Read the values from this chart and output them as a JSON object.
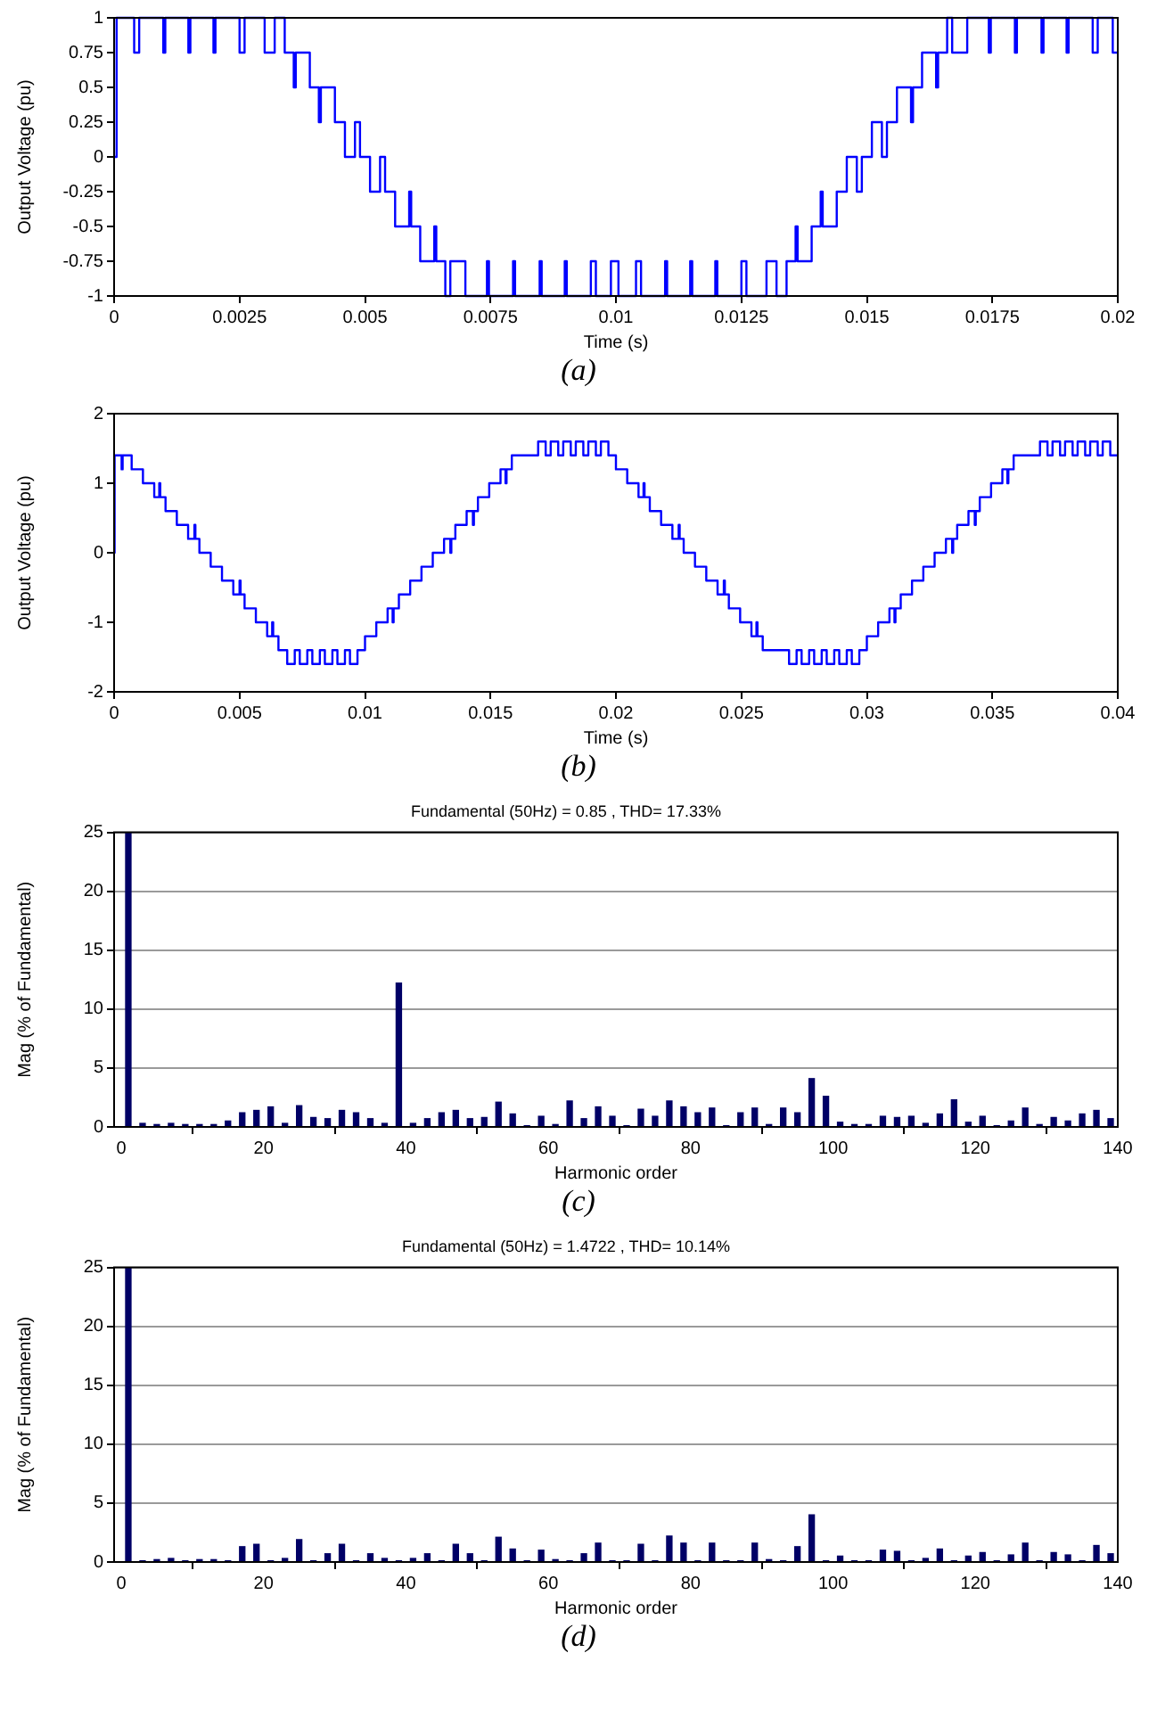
{
  "chart_data": [
    {
      "type": "step",
      "xlabel": "Time (s)",
      "ylabel": "Output Voltage (pu)",
      "annotations": [
        "(a)"
      ],
      "color": "#0000ff",
      "grid": false,
      "legend": false,
      "x": [
        0,
        5e-05,
        0.0004,
        0.0005,
        0.00098,
        0.00102,
        0.00148,
        0.00152,
        0.00198,
        0.00202,
        0.0025,
        0.0026,
        0.003,
        0.0032,
        0.0034,
        0.00358,
        0.00362,
        0.0039,
        0.00408,
        0.00412,
        0.0044,
        0.0046,
        0.0048,
        0.0049,
        0.0051,
        0.0053,
        0.0054,
        0.0056,
        0.00588,
        0.00592,
        0.0061,
        0.00638,
        0.00642,
        0.0066,
        0.0067,
        0.007,
        0.00743,
        0.00747,
        0.00795,
        0.00799,
        0.00848,
        0.00852,
        0.00898,
        0.00902,
        0.0095,
        0.0096,
        0.0099,
        0.01005,
        0.0104,
        0.0105,
        0.01098,
        0.01102,
        0.01148,
        0.01152,
        0.01198,
        0.01202,
        0.0125,
        0.0126,
        0.013,
        0.0132,
        0.0134,
        0.01358,
        0.01362,
        0.0139,
        0.01408,
        0.01412,
        0.0144,
        0.0146,
        0.0148,
        0.0149,
        0.0151,
        0.0153,
        0.0154,
        0.0156,
        0.01588,
        0.01592,
        0.0161,
        0.01638,
        0.01642,
        0.0166,
        0.0167,
        0.017,
        0.01743,
        0.01747,
        0.01795,
        0.01799,
        0.01848,
        0.01852,
        0.01898,
        0.01902,
        0.0195,
        0.0196,
        0.0199,
        0.02
      ],
      "values": [
        0,
        1,
        0.75,
        1,
        0.75,
        1,
        0.75,
        1,
        0.75,
        1,
        0.75,
        1,
        0.75,
        1,
        0.75,
        0.5,
        0.75,
        0.5,
        0.25,
        0.5,
        0.25,
        0,
        0.25,
        0,
        -0.25,
        0,
        -0.25,
        -0.5,
        -0.25,
        -0.5,
        -0.75,
        -0.5,
        -0.75,
        -1,
        -0.75,
        -1,
        -0.75,
        -1,
        -0.75,
        -1,
        -0.75,
        -1,
        -0.75,
        -1,
        -0.75,
        -1,
        -0.75,
        -1,
        -0.75,
        -1,
        -0.75,
        -1,
        -0.75,
        -1,
        -0.75,
        -1,
        -0.75,
        -1,
        -0.75,
        -1,
        -0.75,
        -0.5,
        -0.75,
        -0.5,
        -0.25,
        -0.5,
        -0.25,
        0,
        -0.25,
        0,
        0.25,
        0,
        0.25,
        0.5,
        0.25,
        0.5,
        0.75,
        0.5,
        0.75,
        1,
        0.75,
        1,
        0.75,
        1,
        0.75,
        1,
        0.75,
        1,
        0.75,
        1,
        0.75,
        1,
        0.75,
        0.75
      ],
      "xlim": [
        0,
        0.02
      ],
      "xticks": [
        0,
        0.0025,
        0.005,
        0.0075,
        0.01,
        0.0125,
        0.015,
        0.0175,
        0.02
      ],
      "ylim": [
        -1,
        1
      ],
      "yticks": [
        -1,
        -0.75,
        -0.5,
        -0.25,
        0,
        0.25,
        0.5,
        0.75,
        1
      ]
    },
    {
      "type": "step",
      "xlabel": "Time (s)",
      "ylabel": "Output Voltage (pu)",
      "annotations": [
        "(b)"
      ],
      "color": "#0000ff",
      "grid": false,
      "legend": false,
      "x": [
        0,
        2e-05,
        0.0003,
        0.00034,
        0.0007,
        0.00115,
        0.0016,
        0.0018,
        0.00184,
        0.00205,
        0.0025,
        0.00295,
        0.0032,
        0.00324,
        0.0034,
        0.00385,
        0.0043,
        0.00475,
        0.005,
        0.00504,
        0.0052,
        0.00565,
        0.0061,
        0.0063,
        0.00634,
        0.00655,
        0.0069,
        0.0072,
        0.0074,
        0.0077,
        0.0079,
        0.0082,
        0.0084,
        0.0087,
        0.0089,
        0.0092,
        0.0094,
        0.0097,
        0.01,
        0.01045,
        0.0109,
        0.0111,
        0.01114,
        0.01135,
        0.0118,
        0.01225,
        0.0127,
        0.01315,
        0.0134,
        0.01344,
        0.0136,
        0.01405,
        0.0143,
        0.01434,
        0.0145,
        0.01495,
        0.0154,
        0.0156,
        0.01564,
        0.01585,
        0.0169,
        0.0172,
        0.0174,
        0.0177,
        0.0179,
        0.0182,
        0.0184,
        0.0187,
        0.0189,
        0.0192,
        0.0194,
        0.0197,
        0.02,
        0.02045,
        0.0209,
        0.0211,
        0.02114,
        0.02135,
        0.0218,
        0.02225,
        0.0225,
        0.02254,
        0.0227,
        0.02315,
        0.0236,
        0.02405,
        0.0243,
        0.02434,
        0.0245,
        0.02495,
        0.0254,
        0.0256,
        0.02564,
        0.02585,
        0.0269,
        0.0272,
        0.0274,
        0.0277,
        0.0279,
        0.0282,
        0.0284,
        0.0287,
        0.0289,
        0.0292,
        0.0294,
        0.0297,
        0.03,
        0.03045,
        0.0309,
        0.0311,
        0.03114,
        0.03135,
        0.0318,
        0.03225,
        0.0327,
        0.03315,
        0.0334,
        0.03344,
        0.0336,
        0.03405,
        0.0343,
        0.03434,
        0.0345,
        0.03495,
        0.0354,
        0.0356,
        0.03564,
        0.03585,
        0.0369,
        0.0372,
        0.0374,
        0.0377,
        0.0379,
        0.0382,
        0.0384,
        0.0387,
        0.0389,
        0.0392,
        0.0394,
        0.0397,
        0.04
      ],
      "values": [
        0,
        1.4,
        1.2,
        1.4,
        1.2,
        1,
        0.8,
        1,
        0.8,
        0.6,
        0.4,
        0.2,
        0.4,
        0.2,
        0,
        -0.2,
        -0.4,
        -0.6,
        -0.4,
        -0.6,
        -0.8,
        -1,
        -1.2,
        -1,
        -1.2,
        -1.4,
        -1.6,
        -1.4,
        -1.6,
        -1.4,
        -1.6,
        -1.4,
        -1.6,
        -1.4,
        -1.6,
        -1.4,
        -1.6,
        -1.4,
        -1.2,
        -1,
        -0.8,
        -1,
        -0.8,
        -0.6,
        -0.4,
        -0.2,
        0,
        0.2,
        0,
        0.2,
        0.4,
        0.6,
        0.4,
        0.6,
        0.8,
        1,
        1.2,
        1,
        1.2,
        1.4,
        1.6,
        1.4,
        1.6,
        1.4,
        1.6,
        1.4,
        1.6,
        1.4,
        1.6,
        1.4,
        1.6,
        1.4,
        1.2,
        1,
        0.8,
        1,
        0.8,
        0.6,
        0.4,
        0.2,
        0.4,
        0.2,
        0,
        -0.2,
        -0.4,
        -0.6,
        -0.4,
        -0.6,
        -0.8,
        -1,
        -1.2,
        -1,
        -1.2,
        -1.4,
        -1.6,
        -1.4,
        -1.6,
        -1.4,
        -1.6,
        -1.4,
        -1.6,
        -1.4,
        -1.6,
        -1.4,
        -1.6,
        -1.4,
        -1.2,
        -1,
        -0.8,
        -1,
        -0.8,
        -0.6,
        -0.4,
        -0.2,
        0,
        0.2,
        0,
        0.2,
        0.4,
        0.6,
        0.4,
        0.6,
        0.8,
        1,
        1.2,
        1,
        1.2,
        1.4,
        1.6,
        1.4,
        1.6,
        1.4,
        1.6,
        1.4,
        1.6,
        1.4,
        1.6,
        1.4,
        1.6,
        1.4,
        1.4
      ],
      "xlim": [
        0,
        0.04
      ],
      "xticks": [
        0,
        0.005,
        0.01,
        0.015,
        0.02,
        0.025,
        0.03,
        0.035,
        0.04
      ],
      "ylim": [
        -2,
        2
      ],
      "yticks": [
        -2,
        -1,
        0,
        1,
        2
      ]
    },
    {
      "type": "bar",
      "title": "Fundamental (50Hz) = 0.85 , THD= 17.33%",
      "xlabel": "Harmonic order",
      "ylabel": "Mag (% of Fundamental)",
      "annotations": [
        "(c)"
      ],
      "color": "#000066",
      "grid": "y",
      "legend": false,
      "x": [
        1,
        3,
        5,
        7,
        9,
        11,
        13,
        15,
        17,
        19,
        21,
        23,
        25,
        27,
        29,
        31,
        33,
        35,
        37,
        39,
        41,
        43,
        45,
        47,
        49,
        51,
        53,
        55,
        57,
        59,
        61,
        63,
        65,
        67,
        69,
        71,
        73,
        75,
        77,
        79,
        81,
        83,
        85,
        87,
        89,
        91,
        93,
        95,
        97,
        99,
        101,
        103,
        105,
        107,
        109,
        111,
        113,
        115,
        117,
        119,
        121,
        123,
        125,
        127,
        129,
        131,
        133,
        135,
        137,
        139
      ],
      "values": [
        25,
        0.3,
        0.2,
        0.3,
        0.2,
        0.2,
        0.2,
        0.5,
        1.2,
        1.4,
        1.7,
        0.3,
        1.8,
        0.8,
        0.7,
        1.4,
        1.2,
        0.7,
        0.3,
        12.2,
        0.3,
        0.7,
        1.2,
        1.4,
        0.7,
        0.8,
        2.1,
        1.1,
        0.1,
        0.9,
        0.2,
        2.2,
        0.7,
        1.7,
        0.9,
        0.1,
        1.5,
        0.9,
        2.2,
        1.7,
        1.2,
        1.6,
        0.1,
        1.2,
        1.6,
        0.2,
        1.6,
        1.2,
        4.1,
        2.6,
        0.4,
        0.2,
        0.2,
        0.9,
        0.8,
        0.9,
        0.3,
        1.1,
        2.3,
        0.4,
        0.9,
        0.1,
        0.5,
        1.6,
        0.2,
        0.8,
        0.5,
        1.1,
        1.4,
        0.7
      ],
      "xlim": [
        -1,
        140
      ],
      "xticks": [
        0,
        20,
        40,
        60,
        80,
        100,
        120,
        140
      ],
      "ylim": [
        0,
        25
      ],
      "yticks": [
        0,
        5,
        10,
        15,
        20,
        25
      ]
    },
    {
      "type": "bar",
      "title": "Fundamental (50Hz) = 1.4722 , THD= 10.14%",
      "xlabel": "Harmonic order",
      "ylabel": "Mag (% of Fundamental)",
      "annotations": [
        "(d)"
      ],
      "color": "#000066",
      "grid": "y",
      "legend": false,
      "x": [
        1,
        3,
        5,
        7,
        9,
        11,
        13,
        15,
        17,
        19,
        21,
        23,
        25,
        27,
        29,
        31,
        33,
        35,
        37,
        39,
        41,
        43,
        45,
        47,
        49,
        51,
        53,
        55,
        57,
        59,
        61,
        63,
        65,
        67,
        69,
        71,
        73,
        75,
        77,
        79,
        81,
        83,
        85,
        87,
        89,
        91,
        93,
        95,
        97,
        99,
        101,
        103,
        105,
        107,
        109,
        111,
        113,
        115,
        117,
        119,
        121,
        123,
        125,
        127,
        129,
        131,
        133,
        135,
        137,
        139
      ],
      "values": [
        25,
        0.1,
        0.2,
        0.3,
        0.1,
        0.2,
        0.2,
        0.1,
        1.3,
        1.5,
        0.1,
        0.3,
        1.9,
        0.1,
        0.7,
        1.5,
        0.1,
        0.7,
        0.3,
        0.1,
        0.3,
        0.7,
        0.1,
        1.5,
        0.7,
        0.1,
        2.1,
        1.1,
        0.1,
        1,
        0.2,
        0.1,
        0.7,
        1.6,
        0.1,
        0.1,
        1.5,
        0.1,
        2.2,
        1.6,
        0.1,
        1.6,
        0.1,
        0.1,
        1.6,
        0.2,
        0.1,
        1.3,
        4,
        0.1,
        0.5,
        0.1,
        0.1,
        1,
        0.9,
        0.1,
        0.3,
        1.1,
        0.1,
        0.5,
        0.8,
        0.1,
        0.6,
        1.6,
        0.1,
        0.8,
        0.6,
        0.1,
        1.4,
        0.7
      ],
      "xlim": [
        -1,
        140
      ],
      "xticks": [
        0,
        20,
        40,
        60,
        80,
        100,
        120,
        140
      ],
      "ylim": [
        0,
        25
      ],
      "yticks": [
        0,
        5,
        10,
        15,
        20,
        25
      ]
    }
  ]
}
